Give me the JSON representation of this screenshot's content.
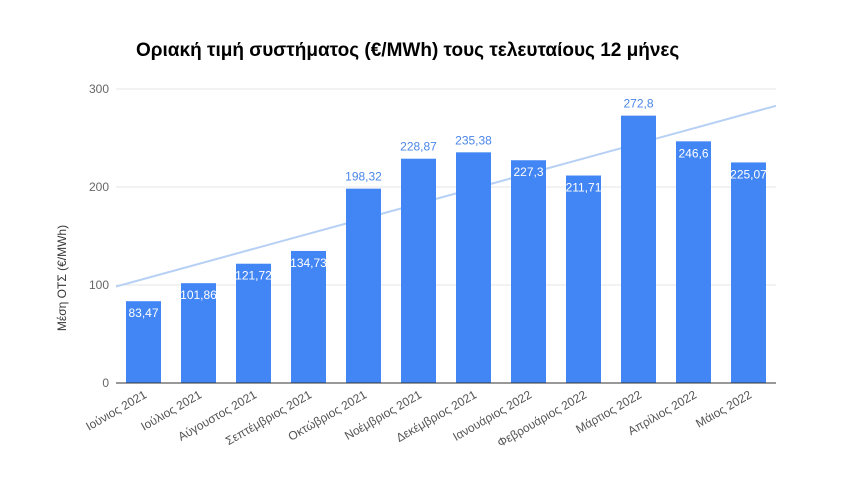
{
  "chart_data": {
    "type": "bar",
    "title": "Οριακή τιμή συστήματος (€/MWh) τους τελευταίους 12 μήνες",
    "xlabel": "",
    "ylabel": "Μέση ΟΤΣ (€/MWh)",
    "ylim": [
      0,
      300
    ],
    "yticks": [
      0,
      100,
      200,
      300
    ],
    "grid": true,
    "legend": "none",
    "trendline": "linear",
    "categories": [
      "Ιούνιος 2021",
      "Ιούλιος 2021",
      "Αύγουστος 2021",
      "Σεπτέμβριος 2021",
      "Οκτώβριος 2021",
      "Νοέμβριος 2021",
      "Δεκέμβριος 2021",
      "Ιανουάριος 2022",
      "Φεβρουάριος 2022",
      "Μάρτιος 2022",
      "Απρίλιος 2022",
      "Μάιος 2022"
    ],
    "values": [
      83.47,
      101.86,
      121.72,
      134.73,
      198.32,
      228.87,
      235.38,
      227.3,
      211.71,
      272.8,
      246.6,
      225.07
    ],
    "value_labels": [
      "83,47",
      "101,86",
      "121,72",
      "134,73",
      "198,32",
      "228,87",
      "235,38",
      "227,3",
      "211,71",
      "272,8",
      "246,6",
      "225,07"
    ],
    "colors": {
      "bar": "#4285f4",
      "trend": "#b7d0f5",
      "grid": "#e5e5e5",
      "axis": "#333333",
      "label_outside": "#4a86e8",
      "label_inside": "#ffffff"
    }
  }
}
